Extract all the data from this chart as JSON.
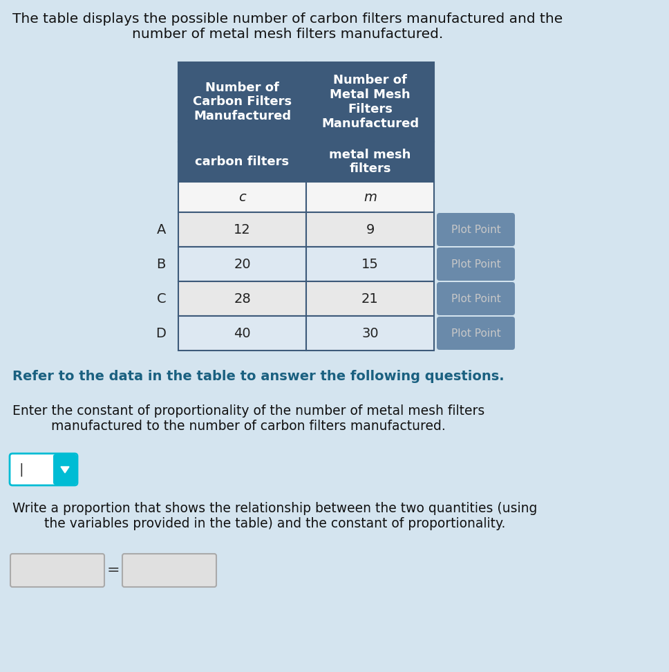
{
  "title_text": "The table displays the possible number of carbon filters manufactured and the\nnumber of metal mesh filters manufactured.",
  "header1": "Number of\nCarbon Filters\nManufactured",
  "header2": "Number of\nMetal Mesh\nFilters\nManufactured",
  "subheader1": "carbon filters",
  "subheader2": "metal mesh\nfilters",
  "var1": "c",
  "var2": "m",
  "rows": [
    {
      "label": "A",
      "c": "12",
      "m": "9"
    },
    {
      "label": "B",
      "c": "20",
      "m": "15"
    },
    {
      "label": "C",
      "c": "28",
      "m": "21"
    },
    {
      "label": "D",
      "c": "40",
      "m": "30"
    }
  ],
  "plot_point_label": "Plot Point",
  "header_bg": "#3d5a7a",
  "header_text_color": "#ffffff",
  "var_row_bg": "#f5f5f5",
  "data_row_bg_A": "#e8e8e8",
  "data_row_bg_B": "#dde8f2",
  "data_row_bg_C": "#e8e8e8",
  "data_row_bg_D": "#dde8f2",
  "plot_point_bg": "#6a8aaa",
  "plot_point_text": "#c8c8c8",
  "border_color": "#3d5a7a",
  "refer_text": "Refer to the data in the table to answer the following questions.",
  "refer_color": "#1a6080",
  "question1": "Enter the constant of proportionality of the number of metal mesh filters\nmanufactured to the number of carbon filters manufactured.",
  "question2": "Write a proportion that shows the relationship between the two quantities (using\nthe variables provided in the table) and the constant of proportionality.",
  "bg_color": "#d4e4ef",
  "input_box_bg": "#ffffff",
  "input_box_border": "#00bcd4",
  "dropdown_bg": "#00bcd4",
  "answer_box_bg": "#e0e0e0",
  "answer_box_border": "#aaaaaa"
}
